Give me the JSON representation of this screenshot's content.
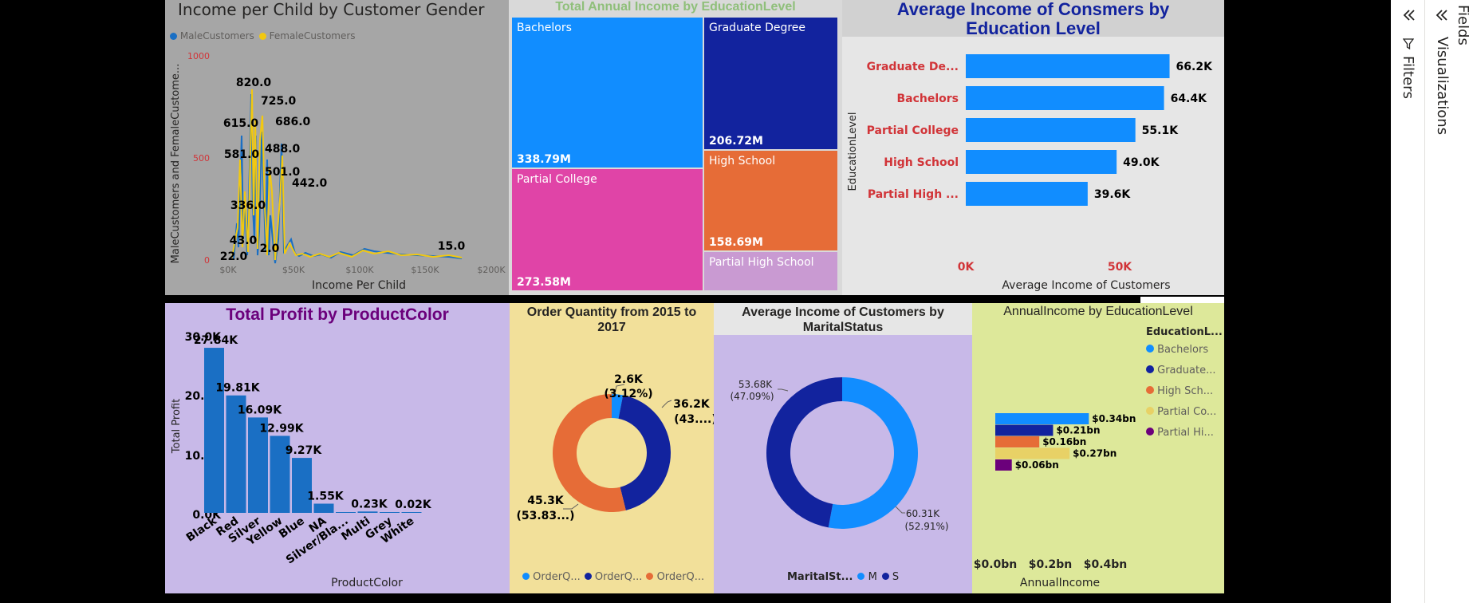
{
  "panes": {
    "visualizations_label": "Visualizations",
    "filters_label": "Filters",
    "fields_label": "Fields"
  },
  "income_per_child": {
    "title": "Income per Child by Customer Gender",
    "legend": [
      {
        "name": "MaleCustomers",
        "color": "#1a6fc4"
      },
      {
        "name": "FemaleCustomers",
        "color": "#f2c811"
      }
    ],
    "chart_data": {
      "type": "line",
      "xlabel": "Income Per Child",
      "ylabel": "MaleCustomers and FemaleCustome...",
      "x_ticks": [
        "$0K",
        "$50K",
        "$100K",
        "$150K",
        "$200K"
      ],
      "y_ticks": [
        "0",
        "500",
        "1000"
      ],
      "xlim": [
        0,
        200000
      ],
      "ylim": [
        0,
        1000
      ],
      "data_labels": [
        "820.0",
        "725.0",
        "686.0",
        "615.0",
        "581.0",
        "488.0",
        "501.0",
        "442.0",
        "336.0",
        "43.0",
        "22.0",
        "2.0",
        "15.0"
      ]
    }
  },
  "treemap": {
    "title": "Total Annual Income by EducationLevel",
    "chart_data": {
      "type": "treemap",
      "items": [
        {
          "label": "Bachelors",
          "value": "338.79M",
          "color": "#118dff"
        },
        {
          "label": "Graduate Degree",
          "value": "206.72M",
          "color": "#12239e"
        },
        {
          "label": "Partial College",
          "value": "273.58M",
          "color": "#e044a7"
        },
        {
          "label": "High School",
          "value": "158.69M",
          "color": "#e66c37"
        },
        {
          "label": "Partial High School",
          "value": "",
          "color": "#c99ad2"
        }
      ]
    }
  },
  "avg_income_edu": {
    "title": "Average Income of Consmers by Education Level",
    "chart_data": {
      "type": "bar",
      "orientation": "horizontal",
      "categories": [
        "Graduate De...",
        "Bachelors",
        "Partial College",
        "High School",
        "Partial High ..."
      ],
      "values": [
        66.2,
        64.4,
        55.1,
        49.0,
        39.6
      ],
      "value_labels": [
        "66.2K",
        "64.4K",
        "55.1K",
        "49.0K",
        "39.6K"
      ],
      "x_ticks": [
        "0K",
        "50K"
      ],
      "xlim": [
        0,
        80
      ],
      "xlabel": "Average Income of Customers",
      "ylabel": "EducationLevel"
    }
  },
  "profit_by_color": {
    "title": "Total Profit by ProductColor",
    "chart_data": {
      "type": "bar",
      "categories": [
        "Black",
        "Red",
        "Silver",
        "Yellow",
        "Blue",
        "NA",
        "Silver/Bla...",
        "Multi",
        "Grey",
        "White"
      ],
      "values": [
        27.84,
        19.81,
        16.09,
        12.99,
        9.27,
        1.55,
        0.1,
        0.23,
        0.05,
        0.02
      ],
      "value_labels": [
        "27.84K",
        "19.81K",
        "16.09K",
        "12.99K",
        "9.27K",
        "1.55K",
        "",
        "0.23K",
        "",
        "0.02K"
      ],
      "y_ticks": [
        "0.0K",
        "10.0K",
        "20.0K",
        "30.0K"
      ],
      "ylim": [
        0,
        30
      ],
      "xlabel": "ProductColor",
      "ylabel": "Total Profit"
    }
  },
  "order_qty": {
    "title": "Order Quantity from 2015 to 2017",
    "chart_data": {
      "type": "pie",
      "donut": true,
      "values": [
        2.6,
        36.2,
        45.3
      ],
      "colors": [
        "#118dff",
        "#12239e",
        "#e66c37"
      ],
      "labels": [
        {
          "value": "2.6K",
          "pct": "(3.12%)"
        },
        {
          "value": "36.2K",
          "pct": "(43....)"
        },
        {
          "value": "45.3K",
          "pct": "(53.83...)"
        }
      ],
      "legend": [
        "OrderQ...",
        "OrderQ...",
        "OrderQ..."
      ]
    }
  },
  "marital": {
    "title": "Average Income of Customers by MaritalStatus",
    "chart_data": {
      "type": "pie",
      "donut": true,
      "values": [
        60.31,
        53.68
      ],
      "colors": [
        "#118dff",
        "#12239e"
      ],
      "labels": [
        {
          "value": "60.31K",
          "pct": "(52.91%)"
        },
        {
          "value": "53.68K",
          "pct": "(47.09%)"
        }
      ],
      "legend_title": "MaritalSt...",
      "legend": [
        {
          "name": "M",
          "color": "#118dff"
        },
        {
          "name": "S",
          "color": "#12239e"
        }
      ]
    }
  },
  "annual_income_edu": {
    "title": "AnnualIncome by EducationLevel",
    "chart_data": {
      "type": "bar",
      "orientation": "horizontal",
      "values": [
        0.34,
        0.21,
        0.16,
        0.27,
        0.06
      ],
      "value_labels": [
        "$0.34bn",
        "$0.21bn",
        "$0.16bn",
        "$0.27bn",
        "$0.06bn"
      ],
      "colors": [
        "#118dff",
        "#12239e",
        "#e66c37",
        "#e8d166",
        "#6b007b"
      ],
      "x_ticks": [
        "$0.0bn",
        "$0.2bn",
        "$0.4bn"
      ],
      "xlim": [
        0,
        0.4
      ],
      "xlabel": "AnnualIncome",
      "legend_title": "EducationL...",
      "legend": [
        {
          "name": "Bachelors",
          "color": "#118dff"
        },
        {
          "name": "Graduate...",
          "color": "#12239e"
        },
        {
          "name": "High Sch...",
          "color": "#e66c37"
        },
        {
          "name": "Partial Co...",
          "color": "#e8d166"
        },
        {
          "name": "Partial Hi...",
          "color": "#6b007b"
        }
      ]
    }
  }
}
